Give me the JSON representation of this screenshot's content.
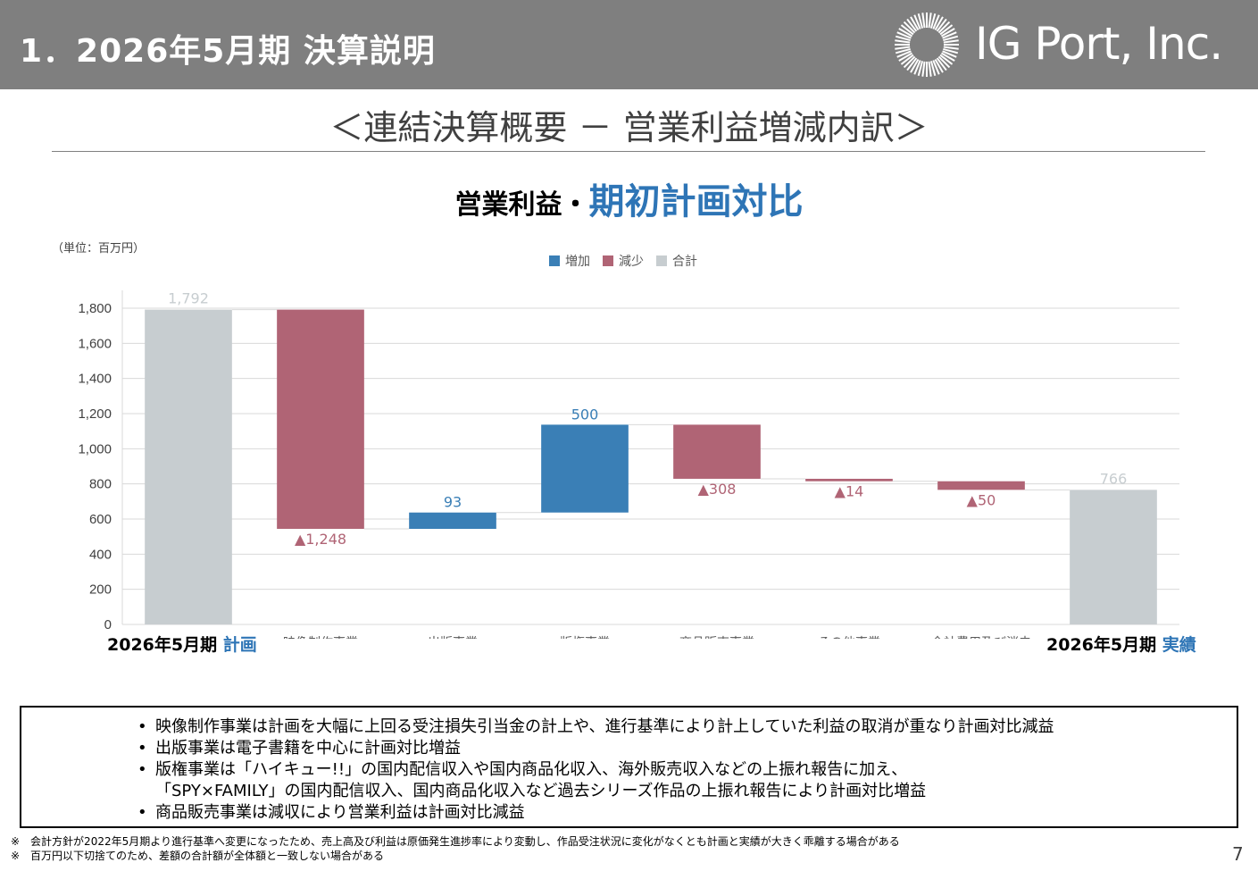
{
  "header": {
    "slide_title": "1．2026年5月期 決算説明",
    "logo_text": "IG Port, Inc."
  },
  "section_title": "＜連結決算概要 － 営業利益増減内訳＞",
  "chart_heading": {
    "prefix": "営業利益・",
    "highlight": "期初計画対比"
  },
  "unit_label": "（単位：百万円）",
  "legend": [
    {
      "label": "増加",
      "color": "#3a7fb6"
    },
    {
      "label": "減少",
      "color": "#b06475"
    },
    {
      "label": "合計",
      "color": "#c7cdd0"
    }
  ],
  "colors": {
    "increase": "#3a7fb6",
    "decrease": "#b06475",
    "total": "#c7cdd0",
    "accent": "#2e75b6",
    "header_bg": "#7f7f7f"
  },
  "chart_data": {
    "type": "bar",
    "subtype": "waterfall",
    "categories": [
      "2026年5月期 計画",
      "映像制作事業",
      "出版事業",
      "版権事業",
      "商品販売事業",
      "その他事業",
      "全社費用及び消去",
      "2026年5月期 実績"
    ],
    "bars": [
      {
        "category": "2026年5月期 計画",
        "kind": "total",
        "start": 0,
        "end": 1792,
        "label": "1,792"
      },
      {
        "category": "映像制作事業",
        "kind": "decrease",
        "start": 1792,
        "end": 544,
        "label": "▲1,248"
      },
      {
        "category": "出版事業",
        "kind": "increase",
        "start": 544,
        "end": 637,
        "label": "93"
      },
      {
        "category": "版権事業",
        "kind": "increase",
        "start": 637,
        "end": 1137,
        "label": "500"
      },
      {
        "category": "商品販売事業",
        "kind": "decrease",
        "start": 1137,
        "end": 829,
        "label": "▲308"
      },
      {
        "category": "その他事業",
        "kind": "decrease",
        "start": 829,
        "end": 815,
        "label": "▲14"
      },
      {
        "category": "全社費用及び消去",
        "kind": "decrease",
        "start": 815,
        "end": 766,
        "label": "▲50"
      },
      {
        "category": "2026年5月期 実績",
        "kind": "total",
        "start": 0,
        "end": 766,
        "label": "766"
      }
    ],
    "ylim": [
      0,
      1800
    ],
    "yticks": [
      "0",
      "200",
      "400",
      "600",
      "800",
      "1,000",
      "1,200",
      "1,400",
      "1,600",
      "1,800"
    ],
    "grid": true,
    "legend_position": "top-center",
    "edge_labels": {
      "left": {
        "main": "2026年5月期 ",
        "accent": "計画"
      },
      "right": {
        "main": "2026年5月期 ",
        "accent": "実績"
      }
    }
  },
  "notes": [
    "映像制作事業は計画を大幅に上回る受注損失引当金の計上や、進行基準により計上していた利益の取消が重なり計画対比減益",
    "出版事業は電子書籍を中心に計画対比増益",
    "版権事業は「ハイキュー!!」の国内配信収入や国内商品化収入、海外販売収入などの上振れ報告に加え、",
    "「SPY×FAMILY」の国内配信収入、国内商品化収入など過去シリーズ作品の上振れ報告により計画対比増益",
    "商品販売事業は減収により営業利益は計画対比減益"
  ],
  "footnotes": [
    "※　会計方針が2022年5月期より進行基準へ変更になったため、売上高及び利益は原価発生進捗率により変動し、作品受注状況に変化がなくとも計画と実績が大きく乖離する場合がある",
    "※　百万円以下切捨てのため、差額の合計額が全体額と一致しない場合がある"
  ],
  "page_number": "7"
}
